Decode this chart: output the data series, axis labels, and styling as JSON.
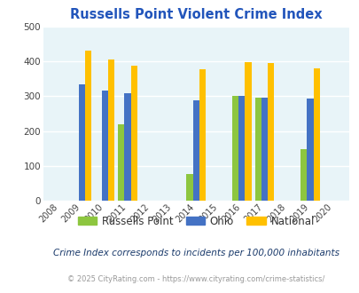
{
  "title": "Russells Point Violent Crime Index",
  "subtitle": "Crime Index corresponds to incidents per 100,000 inhabitants",
  "footer": "© 2025 CityRating.com - https://www.cityrating.com/crime-statistics/",
  "years": [
    2008,
    2009,
    2010,
    2011,
    2012,
    2013,
    2014,
    2015,
    2016,
    2017,
    2018,
    2019,
    2020
  ],
  "russells_point": {
    "2011": 218,
    "2014": 76,
    "2016": 300,
    "2017": 295,
    "2019": 148
  },
  "ohio": {
    "2009": 333,
    "2010": 315,
    "2011": 308,
    "2014": 288,
    "2016": 300,
    "2017": 296,
    "2019": 293
  },
  "national": {
    "2009": 431,
    "2010": 404,
    "2011": 387,
    "2014": 377,
    "2016": 397,
    "2017": 394,
    "2019": 380
  },
  "color_russells": "#8DC63F",
  "color_ohio": "#4472C4",
  "color_national": "#FFC000",
  "bg_color": "#E8F4F8",
  "ylim": [
    0,
    500
  ],
  "yticks": [
    0,
    100,
    200,
    300,
    400,
    500
  ],
  "bar_width": 0.28,
  "title_color": "#2255BB",
  "subtitle_color": "#1a3a6b",
  "footer_color": "#999999"
}
